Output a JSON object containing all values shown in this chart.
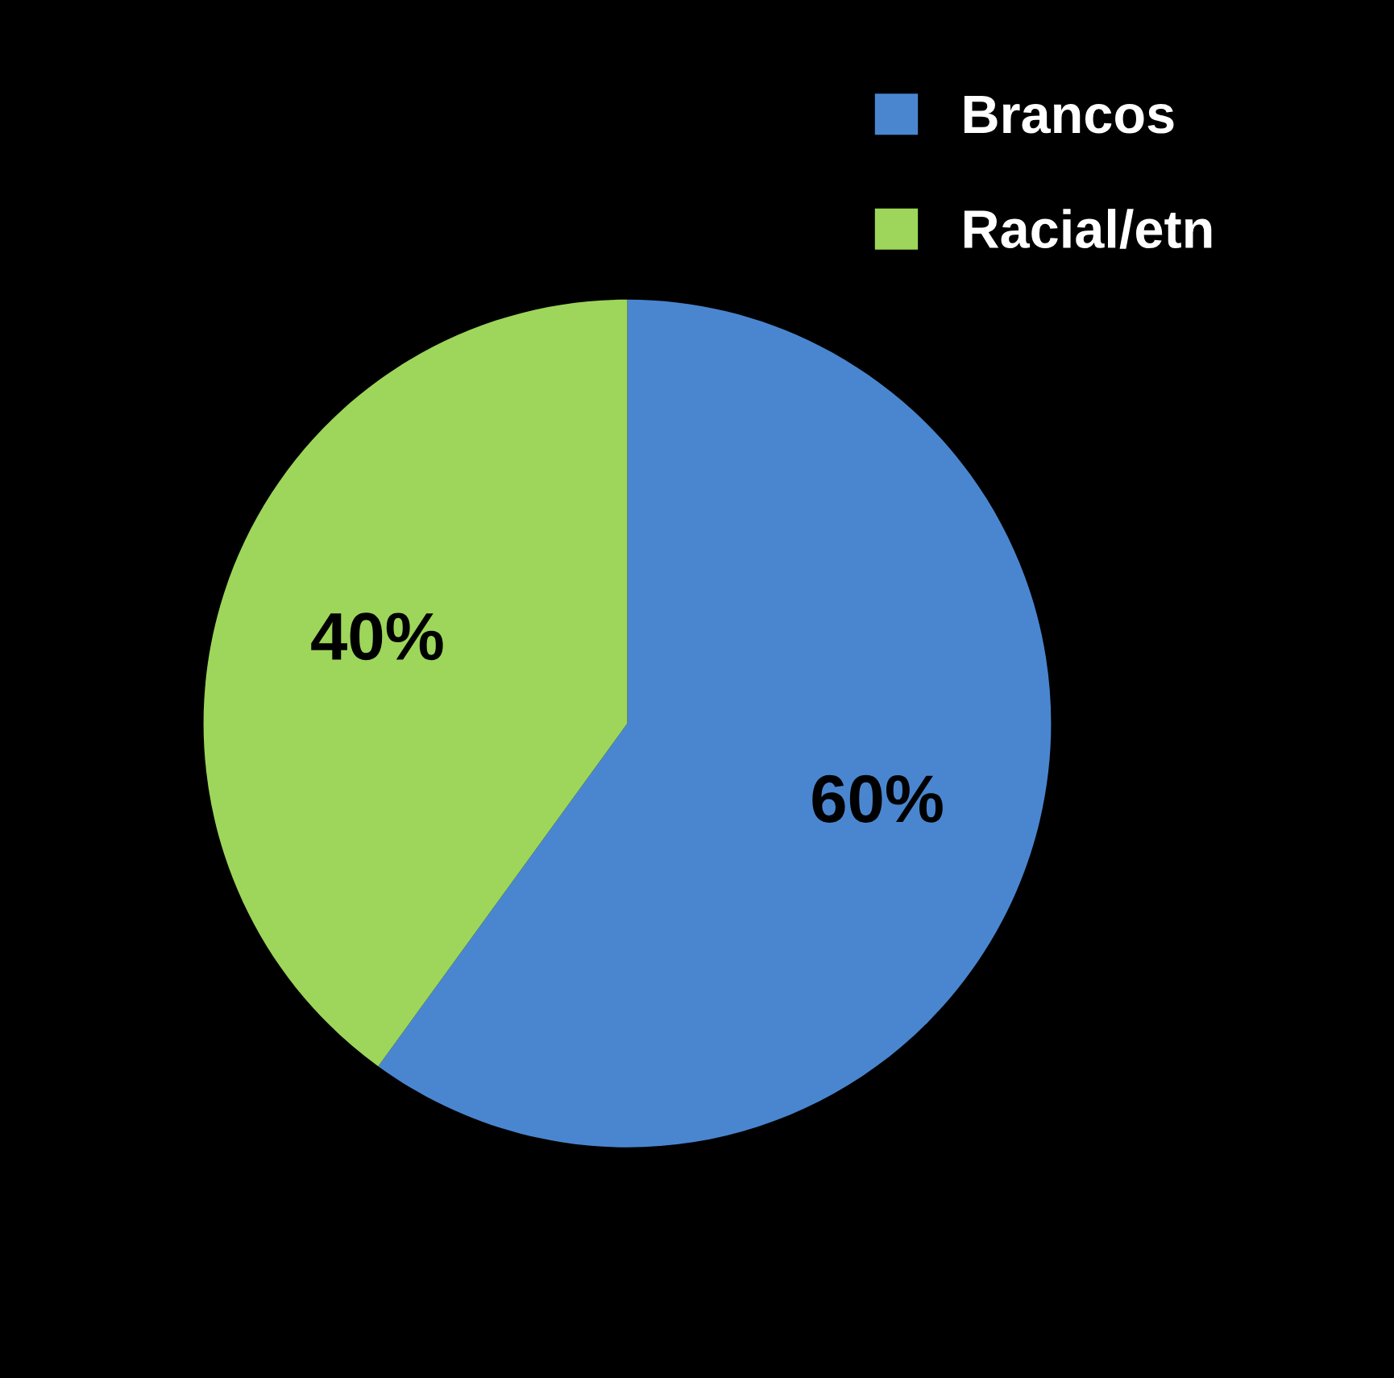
{
  "chart_data": {
    "type": "pie",
    "categories": [
      "Brancos",
      "Racial/etn"
    ],
    "values": [
      60,
      40
    ],
    "colors": [
      "#4a86d0",
      "#9dd65a"
    ],
    "value_labels": [
      "60%",
      "40%"
    ],
    "legend": "top right"
  }
}
